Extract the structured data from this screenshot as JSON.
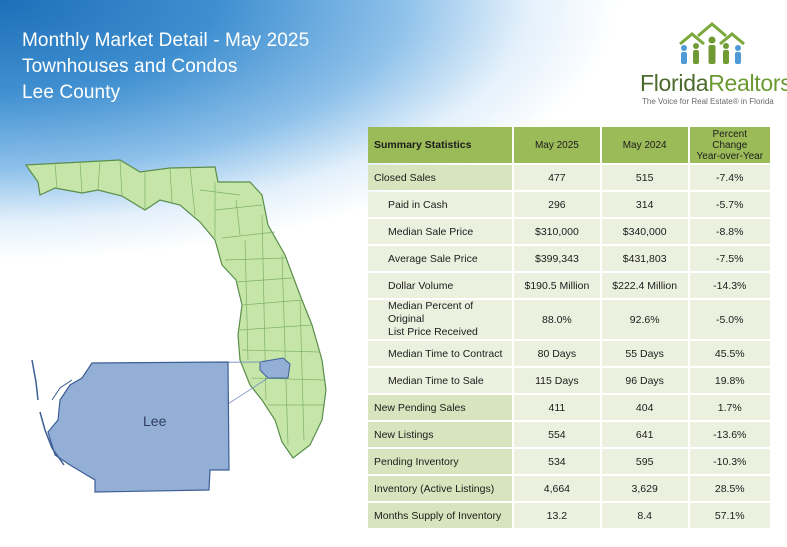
{
  "header": {
    "title_line1": "Monthly Market Detail - May 2025",
    "title_line2": "Townhouses and Condos",
    "title_line3": "Lee County"
  },
  "logo": {
    "brand_part1": "Florida",
    "brand_part2": "Realtors",
    "registered": "®",
    "tagline": "The Voice for Real Estate® in Florida",
    "icon": "people-houses-icon"
  },
  "map": {
    "county_label": "Lee",
    "state_fill": "#c5e6a8",
    "county_fill": "#93afd6"
  },
  "table": {
    "headers": {
      "label": "Summary Statistics",
      "col1": "May 2025",
      "col2": "May 2024",
      "col3_line1": "Percent Change",
      "col3_line2": "Year-over-Year"
    },
    "rows": [
      {
        "label": "Closed Sales",
        "v1": "477",
        "v2": "515",
        "pct": "-7.4%"
      },
      {
        "label": "Paid in Cash",
        "v1": "296",
        "v2": "314",
        "pct": "-5.7%"
      },
      {
        "label": "Median Sale Price",
        "v1": "$310,000",
        "v2": "$340,000",
        "pct": "-8.8%"
      },
      {
        "label": "Average Sale Price",
        "v1": "$399,343",
        "v2": "$431,803",
        "pct": "-7.5%"
      },
      {
        "label": "Dollar Volume",
        "v1": "$190.5 Million",
        "v2": "$222.4 Million",
        "pct": "-14.3%"
      },
      {
        "label_line1": "Median Percent of Original",
        "label_line2": "List Price Received",
        "v1": "88.0%",
        "v2": "92.6%",
        "pct": "-5.0%"
      },
      {
        "label": "Median Time to Contract",
        "v1": "80 Days",
        "v2": "55 Days",
        "pct": "45.5%"
      },
      {
        "label": "Median Time to Sale",
        "v1": "115 Days",
        "v2": "96 Days",
        "pct": "19.8%"
      },
      {
        "label": "New Pending Sales",
        "v1": "411",
        "v2": "404",
        "pct": "1.7%"
      },
      {
        "label": "New Listings",
        "v1": "554",
        "v2": "641",
        "pct": "-13.6%"
      },
      {
        "label": "Pending Inventory",
        "v1": "534",
        "v2": "595",
        "pct": "-10.3%"
      },
      {
        "label": "Inventory (Active Listings)",
        "v1": "4,664",
        "v2": "3,629",
        "pct": "28.5%"
      },
      {
        "label": "Months Supply of Inventory",
        "v1": "13.2",
        "v2": "8.4",
        "pct": "57.1%"
      }
    ]
  }
}
